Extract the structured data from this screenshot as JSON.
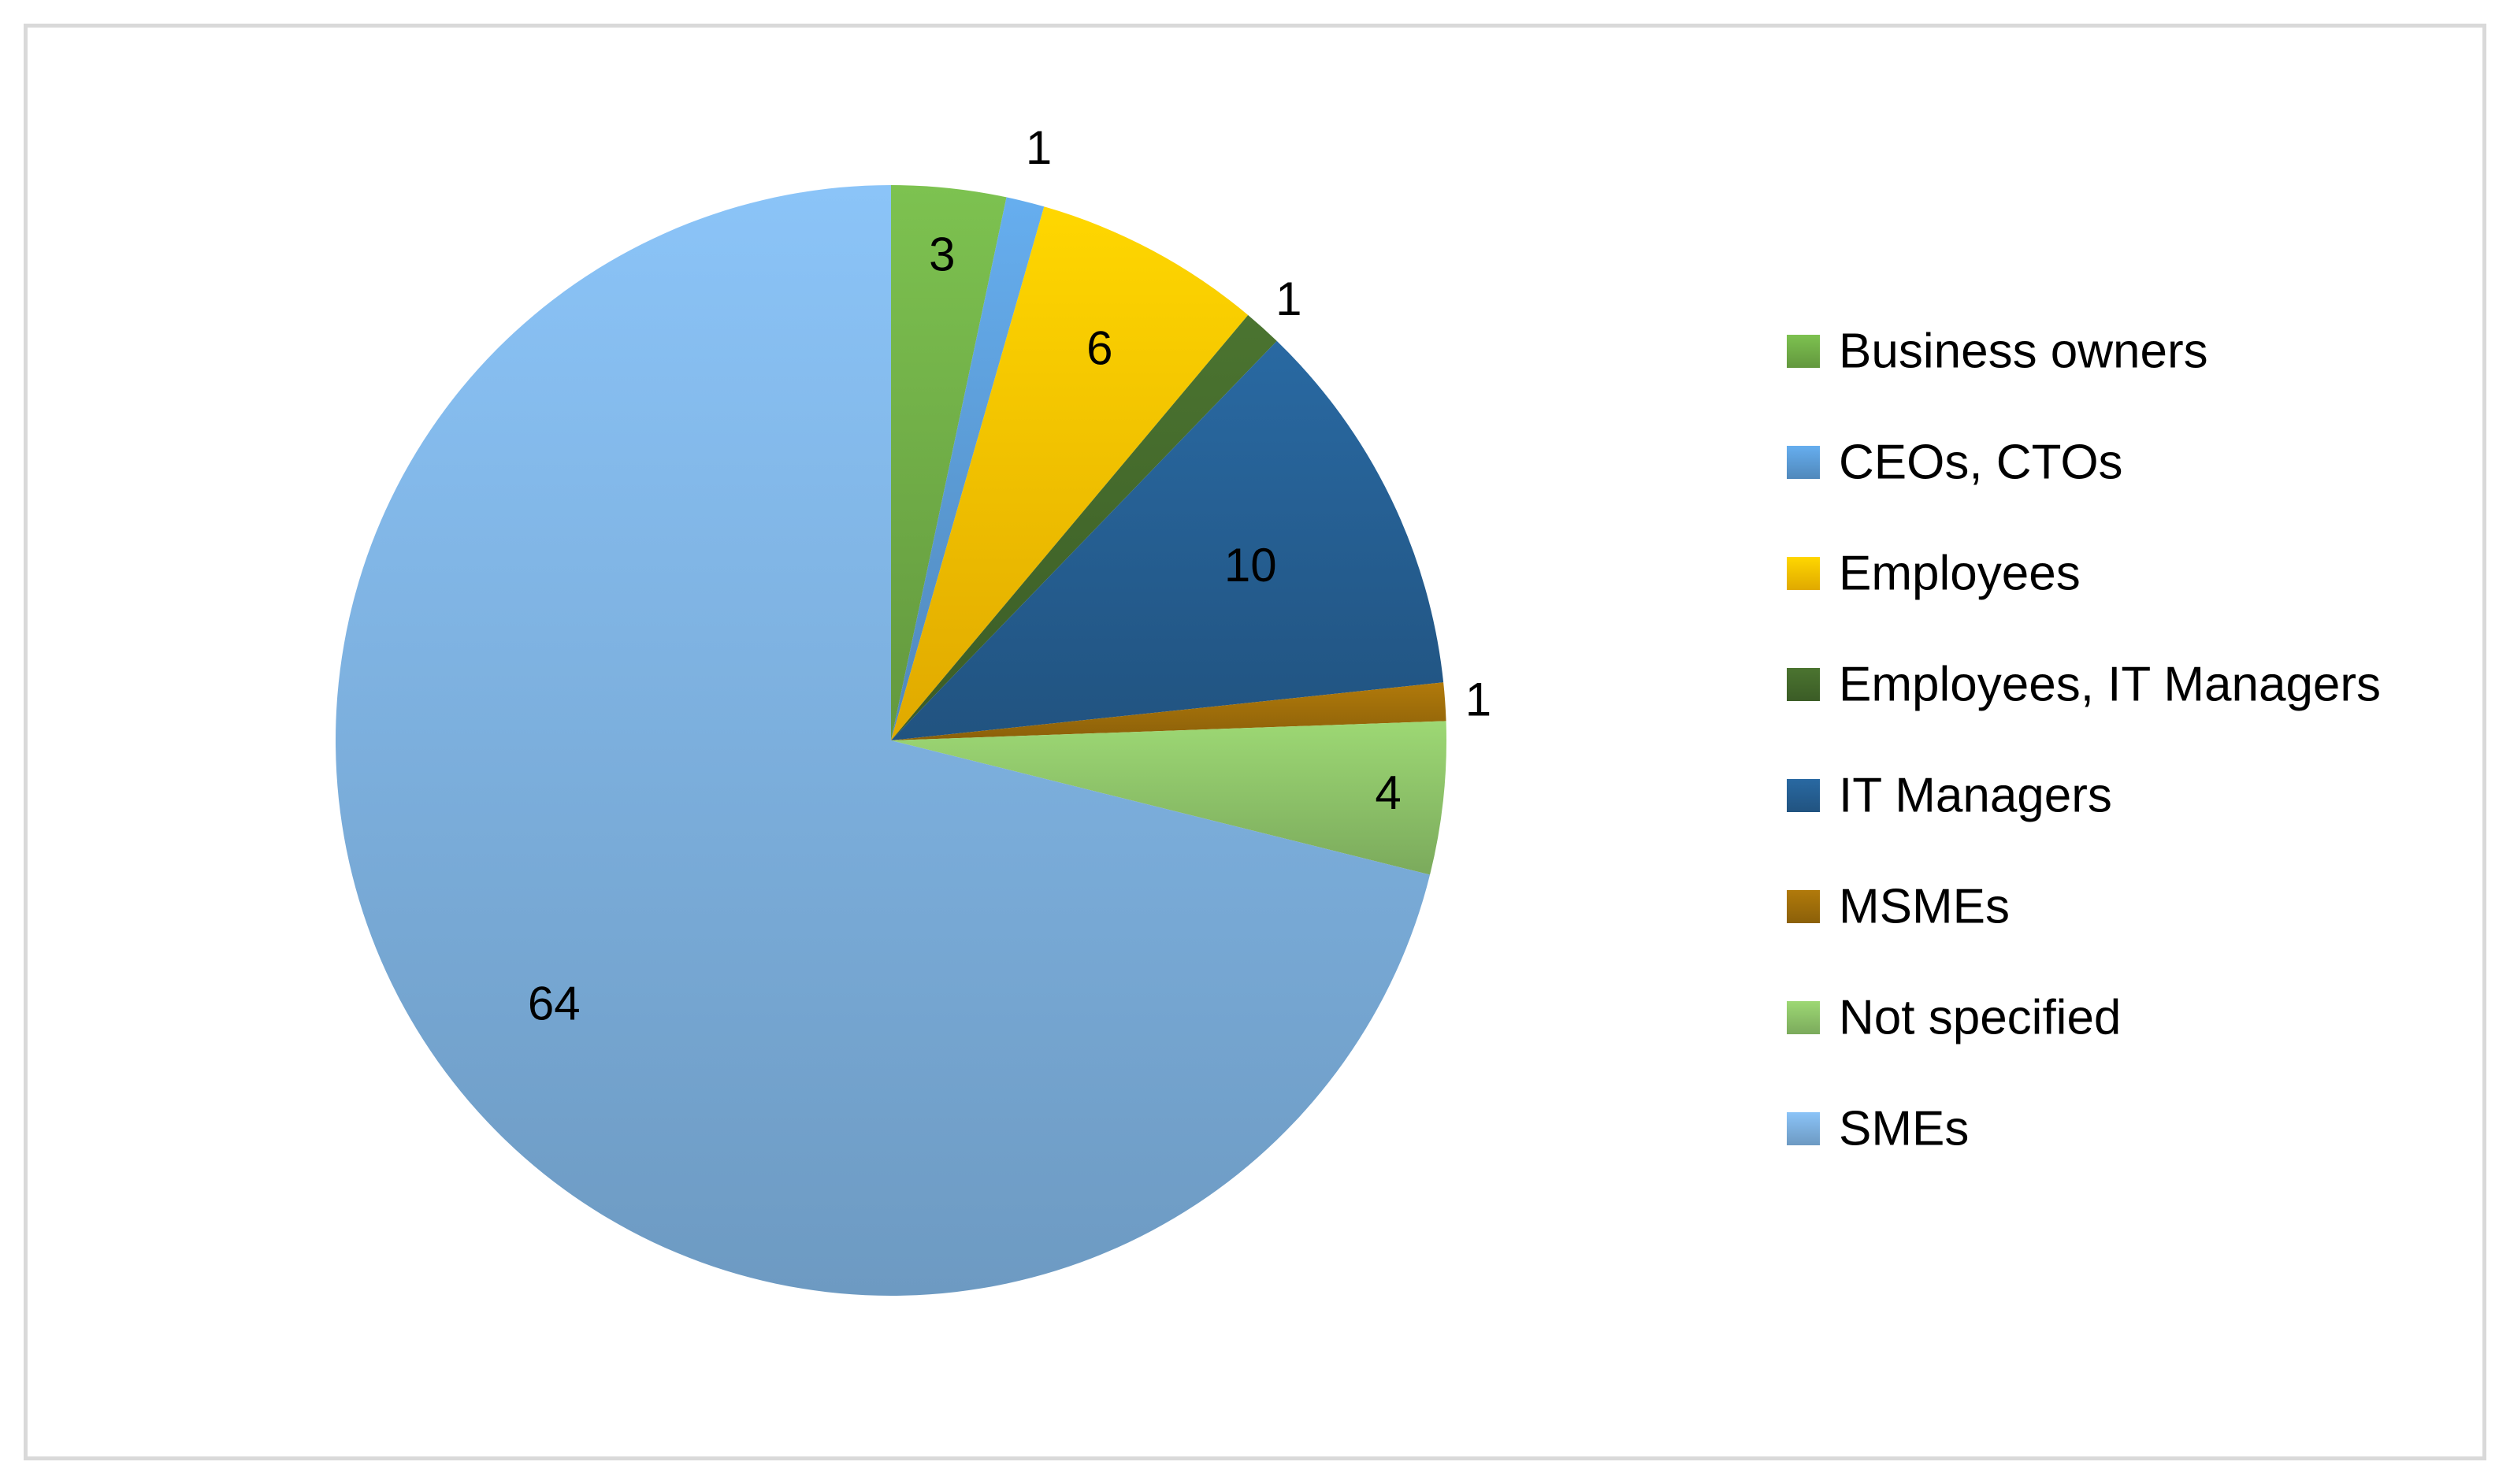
{
  "chart_data": {
    "type": "pie",
    "title": "",
    "legend_position": "right",
    "slices": [
      {
        "label": "Business owners",
        "value": 3,
        "color": "#70ad47"
      },
      {
        "label": "CEOs, CTOs",
        "value": 1,
        "color": "#5b9bd5"
      },
      {
        "label": "Employees",
        "value": 6,
        "color": "#ffc000"
      },
      {
        "label": "Employees, IT Managers",
        "value": 1,
        "color": "#43682b"
      },
      {
        "label": "IT Managers",
        "value": 10,
        "color": "#255e91"
      },
      {
        "label": "MSMEs",
        "value": 1,
        "color": "#9e6d0a"
      },
      {
        "label": "Not specified",
        "value": 4,
        "color": "#8cc168"
      },
      {
        "label": "SMEs",
        "value": 64,
        "color": "#7cafdd"
      }
    ]
  }
}
